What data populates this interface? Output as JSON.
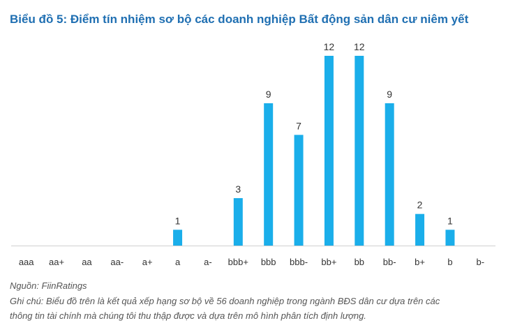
{
  "chart_data": {
    "type": "bar",
    "title": "Biểu đồ 5: Điểm tín nhiệm sơ bộ các doanh nghiệp Bất động sản dân cư niêm yết",
    "categories": [
      "aaa",
      "aa+",
      "aa",
      "aa-",
      "a+",
      "a",
      "a-",
      "bbb+",
      "bbb",
      "bbb-",
      "bb+",
      "bb",
      "bb-",
      "b+",
      "b",
      "b-"
    ],
    "values": [
      0,
      0,
      0,
      0,
      0,
      1,
      0,
      3,
      9,
      7,
      12,
      12,
      9,
      2,
      1,
      0
    ],
    "xlabel": "",
    "ylabel": "",
    "ylim": [
      0,
      12
    ],
    "grid": false,
    "bar_color": "#1aaeea",
    "title_color": "#1f6fb2"
  },
  "notes": {
    "source": "Nguồn: FiinRatings",
    "note_line1": "Ghi chú: Biểu đồ trên là kết quả xếp hạng sơ bộ về 56 doanh nghiệp trong ngành BĐS dân cư dựa trên các",
    "note_line2": "thông tin tài chính mà chúng tôi thu thập được và dựa trên mô hình phân tích định lượng."
  }
}
